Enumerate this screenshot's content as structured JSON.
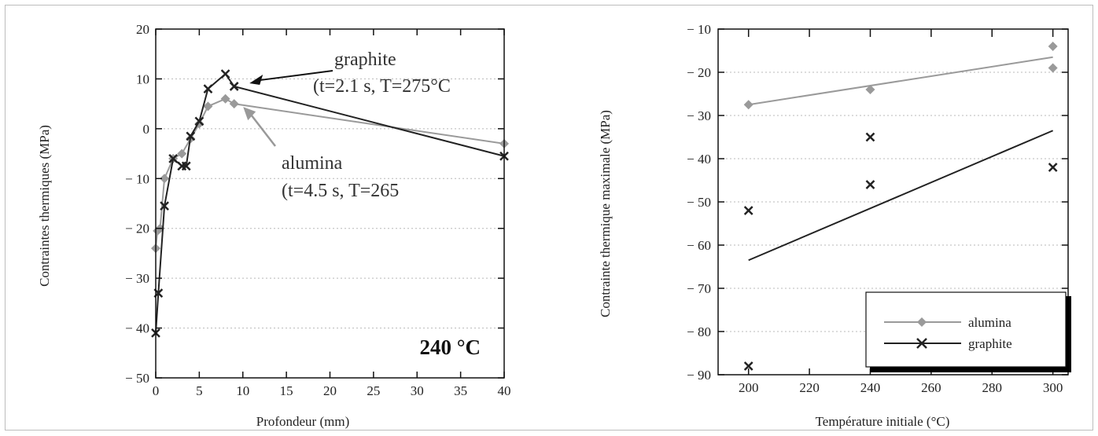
{
  "chart_data": [
    {
      "type": "line",
      "xlabel": "Profondeur (mm)",
      "ylabel": "Contraintes thermiques (MPa)",
      "xlim": [
        0,
        40
      ],
      "ylim": [
        -50,
        20
      ],
      "xticks": [
        0,
        5,
        10,
        15,
        20,
        25,
        30,
        35,
        40
      ],
      "yticks": [
        20,
        10,
        0,
        -10,
        -20,
        -30,
        -40,
        -50
      ],
      "ytick_labels": [
        "20",
        "10",
        "0",
        "− 10",
        "− 20",
        "− 30",
        "− 40",
        "− 50"
      ],
      "grid": "horizontal dotted",
      "series": [
        {
          "name": "alumina",
          "color": "#9a9a9a",
          "marker": "diamond",
          "x": [
            0.0,
            0.2,
            0.5,
            1.0,
            2.0,
            3.0,
            4.0,
            5.0,
            6.0,
            8.0,
            9.0,
            40.0
          ],
          "y": [
            -24,
            -20.5,
            -20,
            -10,
            -6,
            -5,
            -2,
            1,
            4.5,
            6,
            5,
            -3
          ]
        },
        {
          "name": "graphite",
          "color": "#222222",
          "marker": "x",
          "x": [
            0.0,
            0.3,
            1.0,
            2.0,
            3.0,
            3.5,
            4.0,
            5.0,
            6.0,
            8.0,
            9.0,
            40.0
          ],
          "y": [
            -41,
            -33,
            -15.5,
            -6,
            -7.5,
            -7.5,
            -1.5,
            1.5,
            8,
            11,
            8.5,
            -5.5
          ]
        }
      ],
      "annotations": [
        {
          "line1": "graphite",
          "line2": "(t=2.1 s, T=275°C",
          "arrow_to": [
            9.5,
            8.5
          ]
        },
        {
          "line1": "alumina",
          "line2": "(t=4.5 s, T=265",
          "arrow_to": [
            9.5,
            5
          ]
        }
      ],
      "badge": "240 °C"
    },
    {
      "type": "scatter",
      "xlabel": "Température initiale (°C)",
      "ylabel": "Contrainte thermique maximale (MPa)",
      "xlim": [
        190,
        305
      ],
      "ylim": [
        -90,
        -10
      ],
      "xticks": [
        200,
        220,
        240,
        260,
        280,
        300
      ],
      "yticks": [
        -10,
        -20,
        -30,
        -40,
        -50,
        -60,
        -70,
        -80,
        -90
      ],
      "ytick_labels": [
        "− 10",
        "− 20",
        "− 30",
        "− 40",
        "− 50",
        "− 60",
        "− 70",
        "− 80",
        "− 90"
      ],
      "grid": "horizontal dotted",
      "series": [
        {
          "name": "alumina",
          "color": "#9a9a9a",
          "marker": "diamond",
          "points": [
            [
              200,
              -27.5
            ],
            [
              240,
              -24
            ],
            [
              300,
              -14
            ],
            [
              300,
              -19
            ]
          ],
          "trend": [
            [
              200,
              -27.5
            ],
            [
              300,
              -16.5
            ]
          ]
        },
        {
          "name": "graphite",
          "color": "#222222",
          "marker": "x",
          "points": [
            [
              200,
              -52
            ],
            [
              200,
              -88
            ],
            [
              240,
              -35
            ],
            [
              240,
              -46
            ],
            [
              300,
              -42
            ]
          ],
          "trend": [
            [
              200,
              -63.5
            ],
            [
              300,
              -33.5
            ]
          ]
        }
      ],
      "legend_position": "bottom-right"
    }
  ]
}
